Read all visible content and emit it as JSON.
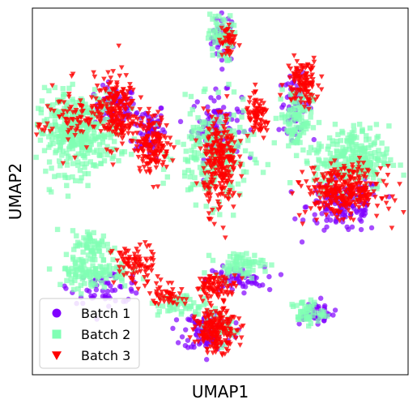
{
  "chart_data": {
    "type": "scatter",
    "title": "",
    "xlabel": "UMAP1",
    "ylabel": "UMAP2",
    "xlim": [
      0,
      100
    ],
    "ylim": [
      0,
      100
    ],
    "grid": false,
    "ticks_shown": false,
    "legend_position": "lower-left",
    "series": [
      {
        "name": "Batch 1",
        "marker": "circle",
        "color": "#8000ff",
        "clusters": [
          {
            "cx": 51,
            "cy": 92,
            "rx": 3,
            "ry": 6,
            "n": 40
          },
          {
            "cx": 22,
            "cy": 73,
            "rx": 5,
            "ry": 5,
            "n": 70
          },
          {
            "cx": 31,
            "cy": 67,
            "rx": 4,
            "ry": 7,
            "n": 70
          },
          {
            "cx": 49,
            "cy": 68,
            "rx": 6,
            "ry": 8,
            "n": 90
          },
          {
            "cx": 70,
            "cy": 74,
            "rx": 4,
            "ry": 7,
            "n": 60
          },
          {
            "cx": 83,
            "cy": 46,
            "rx": 9,
            "ry": 7,
            "n": 140
          },
          {
            "cx": 20,
            "cy": 24,
            "rx": 9,
            "ry": 4,
            "n": 60
          },
          {
            "cx": 54,
            "cy": 26,
            "rx": 7,
            "ry": 3,
            "n": 70
          },
          {
            "cx": 47,
            "cy": 12,
            "rx": 6,
            "ry": 5,
            "n": 120
          },
          {
            "cx": 75,
            "cy": 17,
            "rx": 5,
            "ry": 3,
            "n": 40
          }
        ]
      },
      {
        "name": "Batch 2",
        "marker": "square",
        "color": "#80ffb4",
        "clusters": [
          {
            "cx": 50,
            "cy": 92,
            "rx": 3,
            "ry": 6,
            "n": 60
          },
          {
            "cx": 12,
            "cy": 66,
            "rx": 10,
            "ry": 10,
            "n": 380
          },
          {
            "cx": 48,
            "cy": 60,
            "rx": 9,
            "ry": 12,
            "n": 220
          },
          {
            "cx": 70,
            "cy": 70,
            "rx": 4,
            "ry": 8,
            "n": 100
          },
          {
            "cx": 85,
            "cy": 59,
            "rx": 9,
            "ry": 8,
            "n": 240
          },
          {
            "cx": 16,
            "cy": 35,
            "rx": 5,
            "ry": 4,
            "n": 60
          },
          {
            "cx": 16,
            "cy": 28,
            "rx": 9,
            "ry": 4,
            "n": 110
          },
          {
            "cx": 55,
            "cy": 30,
            "rx": 6,
            "ry": 3,
            "n": 70
          },
          {
            "cx": 40,
            "cy": 19,
            "rx": 6,
            "ry": 3,
            "n": 50
          },
          {
            "cx": 73,
            "cy": 17,
            "rx": 4,
            "ry": 3,
            "n": 50
          },
          {
            "cx": 50,
            "cy": 13,
            "rx": 4,
            "ry": 4,
            "n": 40
          }
        ]
      },
      {
        "name": "Batch 3",
        "marker": "triangle-down",
        "color": "#ff0000",
        "clusters": [
          {
            "cx": 52,
            "cy": 91,
            "rx": 2,
            "ry": 5,
            "n": 40
          },
          {
            "cx": 22,
            "cy": 72,
            "rx": 5,
            "ry": 9,
            "n": 220
          },
          {
            "cx": 32,
            "cy": 63,
            "rx": 4,
            "ry": 7,
            "n": 160
          },
          {
            "cx": 50,
            "cy": 58,
            "rx": 4,
            "ry": 12,
            "n": 260
          },
          {
            "cx": 60,
            "cy": 70,
            "rx": 3,
            "ry": 5,
            "n": 80
          },
          {
            "cx": 72,
            "cy": 80,
            "rx": 4,
            "ry": 6,
            "n": 120
          },
          {
            "cx": 83,
            "cy": 50,
            "rx": 9,
            "ry": 6,
            "n": 320
          },
          {
            "cx": 10,
            "cy": 70,
            "rx": 8,
            "ry": 8,
            "n": 80
          },
          {
            "cx": 27,
            "cy": 30,
            "rx": 5,
            "ry": 5,
            "n": 90
          },
          {
            "cx": 49,
            "cy": 12,
            "rx": 5,
            "ry": 5,
            "n": 200
          },
          {
            "cx": 49,
            "cy": 24,
            "rx": 5,
            "ry": 3,
            "n": 90
          },
          {
            "cx": 36,
            "cy": 22,
            "rx": 4,
            "ry": 3,
            "n": 50
          }
        ]
      }
    ]
  }
}
